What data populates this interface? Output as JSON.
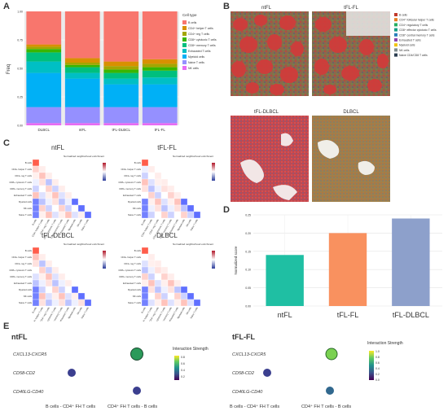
{
  "panels": {
    "a": "A",
    "b": "B",
    "c": "C",
    "d": "D",
    "e": "E"
  },
  "colors": {
    "B cells": "#f8766d",
    "CD4+ helper T cells": "#d89000",
    "CD4+ reg T cells": "#a3a500",
    "CD8+ cytotoxic T cells": "#39b600",
    "CD8+ memory T cells": "#00bf7d",
    "Exhausted T cells": "#00bfc4",
    "Myeloid cells": "#00b0f6",
    "Naive T cells": "#9590ff",
    "NK cells": "#e76bf3",
    "ntFL": "#1fbfa3",
    "tFL-FL": "#f9915f",
    "tFL-DLBCL": "#8da0cb",
    "heat_high": "#b2182b",
    "heat_low": "#2b3c9b"
  },
  "chart_data": [
    {
      "type": "bar",
      "panel": "A",
      "stacked": true,
      "categories": [
        "DLBCL",
        "ntFL",
        "tFL-DLBCL",
        "tFL-FL"
      ],
      "ylabel": "Freq",
      "ylim": [
        0,
        1
      ],
      "yticks": [
        "0.00",
        "0.25",
        "0.50",
        "0.75",
        "1.00"
      ],
      "legend_title": "Cell type",
      "legend_position": "right",
      "series": [
        {
          "name": "NK cells",
          "values": [
            0.02,
            0.02,
            0.02,
            0.02
          ]
        },
        {
          "name": "Naive T cells",
          "values": [
            0.14,
            0.14,
            0.14,
            0.14
          ]
        },
        {
          "name": "Myeloid cells",
          "values": [
            0.3,
            0.25,
            0.2,
            0.2
          ]
        },
        {
          "name": "Exhausted T cells",
          "values": [
            0.1,
            0.05,
            0.05,
            0.06
          ]
        },
        {
          "name": "CD8+ memory T cells",
          "values": [
            0.08,
            0.05,
            0.05,
            0.06
          ]
        },
        {
          "name": "CD8+ cytotoxic T cells",
          "values": [
            0.03,
            0.02,
            0.03,
            0.03
          ]
        },
        {
          "name": "CD4+ reg T cells",
          "values": [
            0.02,
            0.02,
            0.03,
            0.03
          ]
        },
        {
          "name": "CD4+ helper T cells",
          "values": [
            0.02,
            0.04,
            0.04,
            0.04
          ]
        },
        {
          "name": "B cells",
          "values": [
            0.29,
            0.41,
            0.44,
            0.42
          ]
        }
      ]
    },
    {
      "type": "bar",
      "panel": "D",
      "categories": [
        "ntFL",
        "tFL-FL",
        "tFL-DLBCL"
      ],
      "values": [
        0.14,
        0.2,
        0.24
      ],
      "ylabel": "Normalized score",
      "ylim": [
        0,
        0.25
      ],
      "yticks": [
        "0.00",
        "0.05",
        "0.10",
        "0.15",
        "0.20",
        "0.25"
      ],
      "grid": true
    },
    {
      "type": "heatmap",
      "panel": "C",
      "plots": [
        {
          "title": "ntFL"
        },
        {
          "title": "tFL-FL"
        },
        {
          "title": "tFL-DLBCL"
        },
        {
          "title": "DLBCL"
        }
      ],
      "legend_title": "Normalized neighborhood enrichment",
      "rows": [
        "B cells",
        "CD4+ helper T cells",
        "CD4+ reg T cells",
        "CD8+ cytotoxic T cells",
        "CD8+ memory T cells",
        "Exhausted T cells",
        "Myeloid cells",
        "NK cells",
        "Naive T cells"
      ]
    },
    {
      "type": "scatter",
      "panel": "E",
      "plots": [
        {
          "title": "ntFL"
        },
        {
          "title": "tFL-FL"
        }
      ],
      "ylabels": [
        "CXCL13-CXCR5",
        "CD58-CD2",
        "CD40LG-CD40"
      ],
      "xlabels": [
        "B cells - CD4⁺ FH T cells",
        "CD4⁺ FH T cells - B cells"
      ],
      "legend_title": "Interaction Strength",
      "legend_ticks_left": [
        "0.8",
        "0.6",
        "0.4",
        "0.2"
      ],
      "legend_ticks_right": [
        "1.0",
        "0.8",
        "0.6",
        "0.4",
        "0.2",
        "0.0"
      ]
    }
  ],
  "panel_b": {
    "titles": [
      "ntFL",
      "tFL-FL",
      "tFL-DLBCL",
      "DLBCL"
    ],
    "legend": [
      "B cells",
      "CD4⁺ follicular helper T cells",
      "CD4⁺ regulatory T cells",
      "CD8⁺ effector cytotoxic T cells",
      "CD8⁺ central memory T cells",
      "Exhausted T cells",
      "Myeloid cells",
      "NK cells",
      "Naive CD4/CD8 T cells"
    ],
    "legend_colors": [
      "#c0392b",
      "#e67e22",
      "#27ae60",
      "#16a085",
      "#2980b9",
      "#8e44ad",
      "#f1c40f",
      "#7f8c8d",
      "#2c3e50"
    ]
  }
}
